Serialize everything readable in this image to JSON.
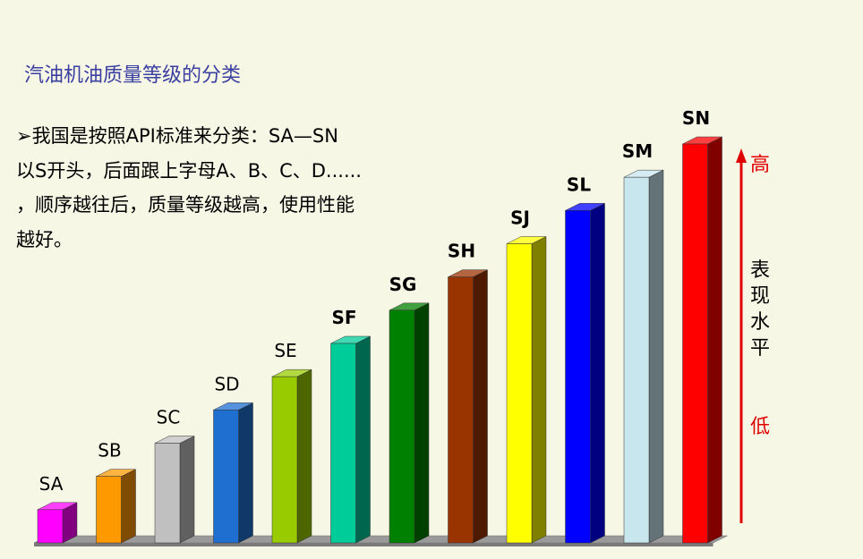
{
  "title": "汽油机油质量等级的分类",
  "body_lines": [
    "➢我国是按照API标准来分类：SA—SN",
    " 以S开头，后面跟上字母A、B、C、D......",
    "，顺序越往后，质量等级越高，使用性能",
    "越好。"
  ],
  "side_axis": {
    "high_label": "高",
    "low_label": "低",
    "caption": [
      "表",
      "现",
      "水",
      "平"
    ],
    "color": "#e00000"
  },
  "chart_data": {
    "type": "bar",
    "title": "",
    "categories": [
      "SA",
      "SB",
      "SC",
      "SD",
      "SE",
      "SF",
      "SG",
      "SH",
      "SJ",
      "SL",
      "SM",
      "SN"
    ],
    "values": [
      1,
      2,
      3,
      4,
      5,
      6,
      7,
      8,
      9,
      10,
      11,
      12
    ],
    "colors": [
      "#ff00ff",
      "#ff9900",
      "#c0c0c0",
      "#1f6fd0",
      "#99cc00",
      "#00cc99",
      "#008000",
      "#993300",
      "#ffff00",
      "#0000ff",
      "#c8e6ee",
      "#ff0000"
    ],
    "bold_labels": [
      false,
      false,
      false,
      false,
      false,
      true,
      true,
      true,
      true,
      true,
      true,
      true
    ],
    "ylim": [
      0,
      12
    ],
    "three_d": true,
    "grid": false,
    "legend": "none"
  }
}
